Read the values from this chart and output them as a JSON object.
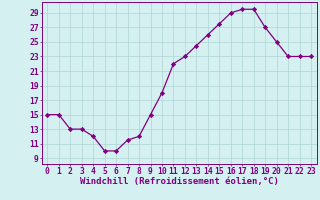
{
  "x": [
    0,
    1,
    2,
    3,
    4,
    5,
    6,
    7,
    8,
    9,
    10,
    11,
    12,
    13,
    14,
    15,
    16,
    17,
    18,
    19,
    20,
    21,
    22,
    23
  ],
  "y": [
    15,
    15,
    13,
    13,
    12,
    10,
    10,
    11.5,
    12,
    15,
    18,
    22,
    23,
    24.5,
    26,
    27.5,
    29,
    29.5,
    29.5,
    27,
    25,
    23,
    23,
    23
  ],
  "line_color": "#800080",
  "marker": "D",
  "marker_size": 2.2,
  "bg_color": "#d4f0f0",
  "grid_color": "#b0d4d4",
  "xlabel": "Windchill (Refroidissement éolien,°C)",
  "xlabel_fontsize": 6.5,
  "tick_color": "#800080",
  "tick_fontsize": 5.8,
  "ytick_start": 9,
  "ytick_end": 29,
  "ytick_step": 2,
  "ylim": [
    8.2,
    30.5
  ],
  "xlim": [
    -0.5,
    23.5
  ]
}
